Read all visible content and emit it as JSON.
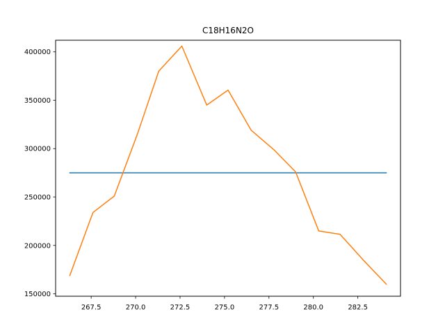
{
  "chart_data": {
    "type": "line",
    "title": "C18H16N2O",
    "xlabel": "",
    "ylabel": "",
    "xlim": [
      265.5,
      284.9
    ],
    "ylim": [
      147500,
      412000
    ],
    "xticks": [
      267.5,
      270.0,
      272.5,
      275.0,
      277.5,
      280.0,
      282.5
    ],
    "xtick_labels": [
      "267.5",
      "270.0",
      "272.5",
      "275.0",
      "277.5",
      "280.0",
      "282.5"
    ],
    "yticks": [
      150000,
      200000,
      250000,
      300000,
      350000,
      400000
    ],
    "ytick_labels": [
      "150000",
      "200000",
      "250000",
      "300000",
      "350000",
      "400000"
    ],
    "grid": false,
    "series": [
      {
        "color": "#1f77b4",
        "x": [
          266.3,
          284.1
        ],
        "y": [
          275000,
          275000
        ]
      },
      {
        "color": "#ff7f0e",
        "x": [
          266.3,
          267.6,
          268.8,
          270.1,
          271.3,
          272.6,
          274.0,
          275.2,
          276.5,
          277.8,
          279.0,
          280.3,
          281.5,
          282.8,
          284.1
        ],
        "y": [
          169000,
          234000,
          251000,
          315000,
          380000,
          406000,
          345000,
          360500,
          319000,
          298500,
          276000,
          215000,
          211500,
          185000,
          160000
        ]
      }
    ]
  }
}
